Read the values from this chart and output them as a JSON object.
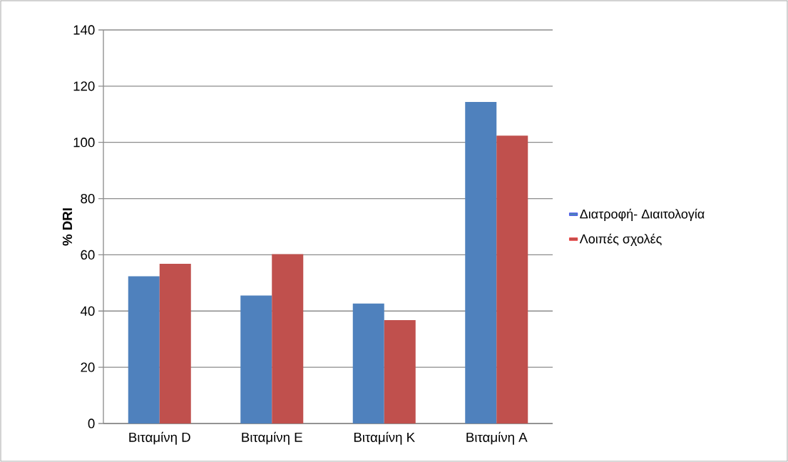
{
  "chart_data": {
    "type": "bar",
    "ylabel": "% DRI",
    "categories": [
      "Βιταμίνη D",
      "Βιταμίνη E",
      "Βιταμίνη K",
      "Βιταμίνη A"
    ],
    "series": [
      {
        "name": "Διατροφή- Διαιτολογία",
        "color": "#4f81bd",
        "values": [
          52.4,
          45.5,
          42.7,
          114.4
        ]
      },
      {
        "name": "Λοιπές σχολές",
        "color": "#c0504d",
        "values": [
          56.8,
          60.2,
          36.8,
          102.4
        ]
      }
    ],
    "ylim": [
      0,
      140
    ],
    "yticks": [
      0,
      20,
      40,
      60,
      80,
      100,
      120,
      140
    ],
    "grid": "y",
    "legend": "right"
  }
}
